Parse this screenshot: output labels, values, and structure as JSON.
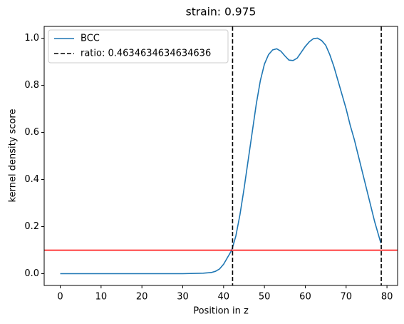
{
  "chart_data": {
    "type": "line",
    "title": "strain: 0.975",
    "xlabel": "Position in z",
    "ylabel": "kernel density score",
    "x": [
      0,
      5,
      10,
      15,
      20,
      25,
      30,
      35,
      37,
      38,
      39,
      40,
      41,
      42,
      43,
      44,
      45,
      46,
      47,
      48,
      49,
      50,
      51,
      52,
      53,
      54,
      55,
      56,
      57,
      58,
      59,
      60,
      61,
      62,
      63,
      64,
      65,
      66,
      67,
      68,
      69,
      70,
      71,
      72,
      73,
      74,
      75,
      76,
      77,
      78,
      78.5
    ],
    "series": [
      {
        "name": "BCC",
        "color": "#1f77b4",
        "values": [
          0,
          0,
          0,
          0,
          0,
          0,
          0,
          0.002,
          0.005,
          0.01,
          0.02,
          0.04,
          0.07,
          0.1,
          0.16,
          0.25,
          0.36,
          0.48,
          0.6,
          0.72,
          0.82,
          0.89,
          0.93,
          0.95,
          0.955,
          0.945,
          0.925,
          0.907,
          0.905,
          0.915,
          0.94,
          0.965,
          0.985,
          0.998,
          1.0,
          0.99,
          0.97,
          0.93,
          0.88,
          0.82,
          0.76,
          0.7,
          0.63,
          0.57,
          0.5,
          0.43,
          0.36,
          0.29,
          0.22,
          0.16,
          0.13
        ]
      }
    ],
    "vlines": {
      "name": "ratio: 0.4634634634634636",
      "color": "#000000",
      "values": [
        42.2,
        78.6
      ]
    },
    "hline": {
      "color": "#ff0000",
      "value": 0.1
    },
    "xlim": [
      -3.93,
      82.6
    ],
    "ylim": [
      -0.05,
      1.05
    ],
    "xticks": [
      0,
      10,
      20,
      30,
      40,
      50,
      60,
      70,
      80
    ],
    "yticks": [
      {
        "value": 0,
        "label": "0.0"
      },
      0.2,
      0.4,
      0.6,
      0.8,
      {
        "value": 1,
        "label": "1.0"
      }
    ],
    "legend": "upper left"
  }
}
